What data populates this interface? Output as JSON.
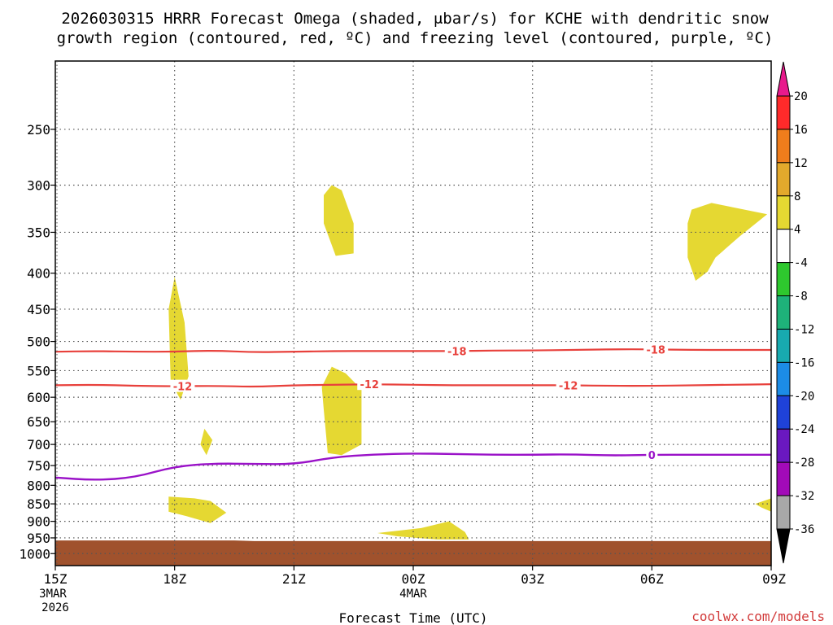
{
  "chart_data": {
    "type": "time-height cross section",
    "title_line1": "2026030315 HRRR Forecast Omega (shaded, μbar/s) for KCHE with dendritic snow",
    "title_line2": "growth region (contoured, red, ºC) and freezing level (contoured, purple, ºC)",
    "xlabel": "Forecast Time (UTC)",
    "watermark": "coolwx.com/models",
    "x_ticks": [
      {
        "h": 0,
        "label": "15Z",
        "sub1": "3MAR",
        "sub2": "2026"
      },
      {
        "h": 3,
        "label": "18Z",
        "sub1": "",
        "sub2": ""
      },
      {
        "h": 6,
        "label": "21Z",
        "sub1": "",
        "sub2": ""
      },
      {
        "h": 9,
        "label": "00Z",
        "sub1": "4MAR",
        "sub2": ""
      },
      {
        "h": 12,
        "label": "03Z",
        "sub1": "",
        "sub2": ""
      },
      {
        "h": 15,
        "label": "06Z",
        "sub1": "",
        "sub2": ""
      },
      {
        "h": 18,
        "label": "09Z",
        "sub1": "",
        "sub2": ""
      }
    ],
    "y_ticks": [
      250,
      300,
      350,
      400,
      450,
      500,
      550,
      600,
      650,
      700,
      750,
      800,
      850,
      900,
      950,
      1000
    ],
    "ylim_hPa": [
      1040,
      200
    ],
    "xlim_hours": [
      0,
      18
    ],
    "colorbar": {
      "labels": [
        "20",
        "16",
        "12",
        "8",
        "4",
        "-4",
        "-8",
        "-12",
        "-16",
        "-20",
        "-24",
        "-28",
        "-32",
        "-36"
      ],
      "colors_top_to_bottom": [
        "#ff2a2a",
        "#ef7d1c",
        "#e3a92c",
        "#e5d832",
        "#ffffff",
        "#2ec82e",
        "#1eb27a",
        "#18aab0",
        "#1c8ce6",
        "#1f42d8",
        "#6a18c0",
        "#a20ab8",
        "#a8a8a8"
      ],
      "top_arrow_color": "#e81a8c",
      "bottom_arrow_color": "#000000"
    },
    "terrain_color": "#a0522d",
    "omega_shading_color": "#e5d832",
    "dgz_contours": [
      {
        "label": "-18",
        "color": "#e8413c",
        "h": [
          0,
          1,
          2,
          3,
          4,
          5,
          6,
          7,
          8,
          9,
          10,
          11,
          12,
          13,
          14,
          15,
          16,
          17,
          18
        ],
        "p": [
          517,
          516,
          517,
          517,
          515,
          518,
          517,
          516,
          516,
          516,
          516,
          515,
          515,
          514,
          513,
          513,
          514,
          514,
          514
        ],
        "label_at": [
          10.1,
          15.1
        ]
      },
      {
        "label": "-12",
        "color": "#e8413c",
        "h": [
          0,
          1,
          2,
          3,
          4,
          5,
          6,
          7,
          8,
          9,
          10,
          11,
          12,
          13,
          14,
          15,
          16,
          17,
          18
        ],
        "p": [
          577,
          576,
          578,
          579,
          578,
          580,
          577,
          576,
          575,
          576,
          577,
          577,
          577,
          577,
          578,
          578,
          577,
          576,
          575
        ],
        "label_at": [
          3.2,
          7.9,
          12.9
        ]
      }
    ],
    "freezing_level": {
      "label": "0",
      "color": "#9a12c8",
      "h": [
        0,
        1,
        2,
        3,
        4,
        5,
        6,
        7,
        8,
        9,
        10,
        11,
        12,
        13,
        14,
        15,
        16,
        17,
        18
      ],
      "p": [
        780,
        787,
        780,
        752,
        745,
        746,
        747,
        730,
        723,
        721,
        722,
        724,
        724,
        723,
        726,
        724,
        724,
        724,
        724
      ],
      "label_at": [
        15.0
      ]
    },
    "terrain_top_hPa": [
      {
        "h": 0,
        "p": 958
      },
      {
        "h": 4.5,
        "p": 958
      },
      {
        "h": 5,
        "p": 960
      },
      {
        "h": 18,
        "p": 960
      }
    ],
    "omega_regions": [
      {
        "value_range": "4 to 8",
        "points": [
          [
            3.0,
            405
          ],
          [
            3.25,
            470
          ],
          [
            3.35,
            560
          ],
          [
            3.15,
            605
          ],
          [
            2.9,
            570
          ],
          [
            2.85,
            450
          ]
        ]
      },
      {
        "value_range": "4 to 8",
        "points": [
          [
            3.75,
            665
          ],
          [
            3.95,
            690
          ],
          [
            3.8,
            725
          ],
          [
            3.65,
            700
          ]
        ]
      },
      {
        "value_range": "4 to 8",
        "points": [
          [
            2.85,
            830
          ],
          [
            3.5,
            835
          ],
          [
            3.9,
            842
          ],
          [
            4.3,
            875
          ],
          [
            3.9,
            905
          ],
          [
            3.3,
            885
          ],
          [
            2.85,
            872
          ]
        ]
      },
      {
        "value_range": "4 to 8",
        "points": [
          [
            6.95,
            300
          ],
          [
            7.2,
            305
          ],
          [
            7.5,
            340
          ],
          [
            7.5,
            375
          ],
          [
            7.05,
            378
          ],
          [
            6.75,
            340
          ],
          [
            6.75,
            310
          ]
        ]
      },
      {
        "value_range": "4 to 8",
        "points": [
          [
            6.95,
            543
          ],
          [
            7.3,
            555
          ],
          [
            7.7,
            585
          ],
          [
            7.7,
            700
          ],
          [
            7.2,
            725
          ],
          [
            6.85,
            720
          ],
          [
            6.75,
            625
          ],
          [
            6.7,
            580
          ]
        ]
      },
      {
        "value_range": "4 to 8",
        "points": [
          [
            8.1,
            935
          ],
          [
            9.2,
            920
          ],
          [
            9.9,
            900
          ],
          [
            10.3,
            932
          ],
          [
            10.4,
            955
          ],
          [
            9.6,
            955
          ],
          [
            8.6,
            945
          ]
        ]
      },
      {
        "value_range": "4 to 8",
        "points": [
          [
            16.0,
            325
          ],
          [
            16.5,
            318
          ],
          [
            17.9,
            330
          ],
          [
            17.2,
            355
          ],
          [
            16.6,
            380
          ],
          [
            16.4,
            398
          ],
          [
            16.1,
            410
          ],
          [
            15.9,
            380
          ],
          [
            15.9,
            340
          ]
        ]
      },
      {
        "value_range": "4 to 8",
        "points": [
          [
            17.6,
            850
          ],
          [
            18.0,
            835
          ],
          [
            18.0,
            872
          ],
          [
            17.75,
            860
          ]
        ]
      }
    ]
  }
}
